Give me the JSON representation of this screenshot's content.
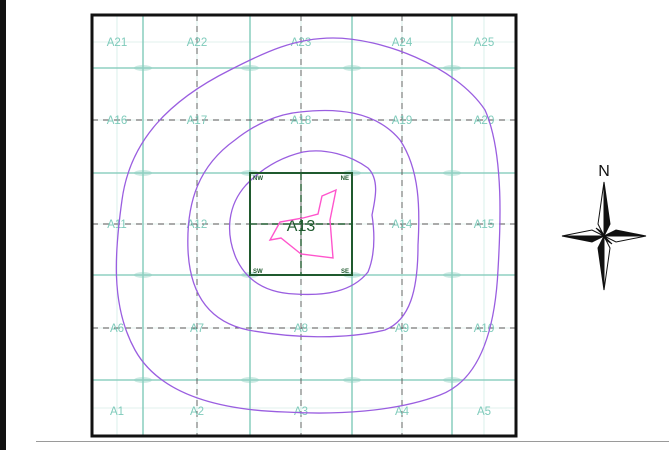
{
  "title": "",
  "tiles": [
    {
      "id": "A21",
      "row": 0,
      "col": 0
    },
    {
      "id": "A22",
      "row": 0,
      "col": 1
    },
    {
      "id": "A23",
      "row": 0,
      "col": 2
    },
    {
      "id": "A24",
      "row": 0,
      "col": 3
    },
    {
      "id": "A25",
      "row": 0,
      "col": 4
    },
    {
      "id": "A16",
      "row": 1,
      "col": 0
    },
    {
      "id": "A17",
      "row": 1,
      "col": 1
    },
    {
      "id": "A18",
      "row": 1,
      "col": 2
    },
    {
      "id": "A19",
      "row": 1,
      "col": 3
    },
    {
      "id": "A20",
      "row": 1,
      "col": 4
    },
    {
      "id": "A11",
      "row": 2,
      "col": 0
    },
    {
      "id": "A12",
      "row": 2,
      "col": 1
    },
    {
      "id": "A13",
      "row": 2,
      "col": 2
    },
    {
      "id": "A14",
      "row": 2,
      "col": 3
    },
    {
      "id": "A15",
      "row": 2,
      "col": 4
    },
    {
      "id": "A6",
      "row": 3,
      "col": 0
    },
    {
      "id": "A7",
      "row": 3,
      "col": 1
    },
    {
      "id": "A8",
      "row": 3,
      "col": 2
    },
    {
      "id": "A9",
      "row": 3,
      "col": 3
    },
    {
      "id": "A10",
      "row": 3,
      "col": 4
    },
    {
      "id": "A1",
      "row": 4,
      "col": 0
    },
    {
      "id": "A2",
      "row": 4,
      "col": 1
    },
    {
      "id": "A3",
      "row": 4,
      "col": 2
    },
    {
      "id": "A4",
      "row": 4,
      "col": 3
    },
    {
      "id": "A5",
      "row": 4,
      "col": 4
    }
  ],
  "highlighted_tile": {
    "id": "A13",
    "corners": {
      "nw": "NW",
      "ne": "NE",
      "sw": "SW",
      "se": "SE"
    }
  },
  "compass": {
    "north_label": "N"
  },
  "colors": {
    "grid": "#8fd0c2",
    "tile_label": "#7fcbbb",
    "contour": "#9a5ee0",
    "core_shape": "#ff55cc",
    "highlight_box": "#1f5a2e",
    "map_border": "#111111"
  }
}
